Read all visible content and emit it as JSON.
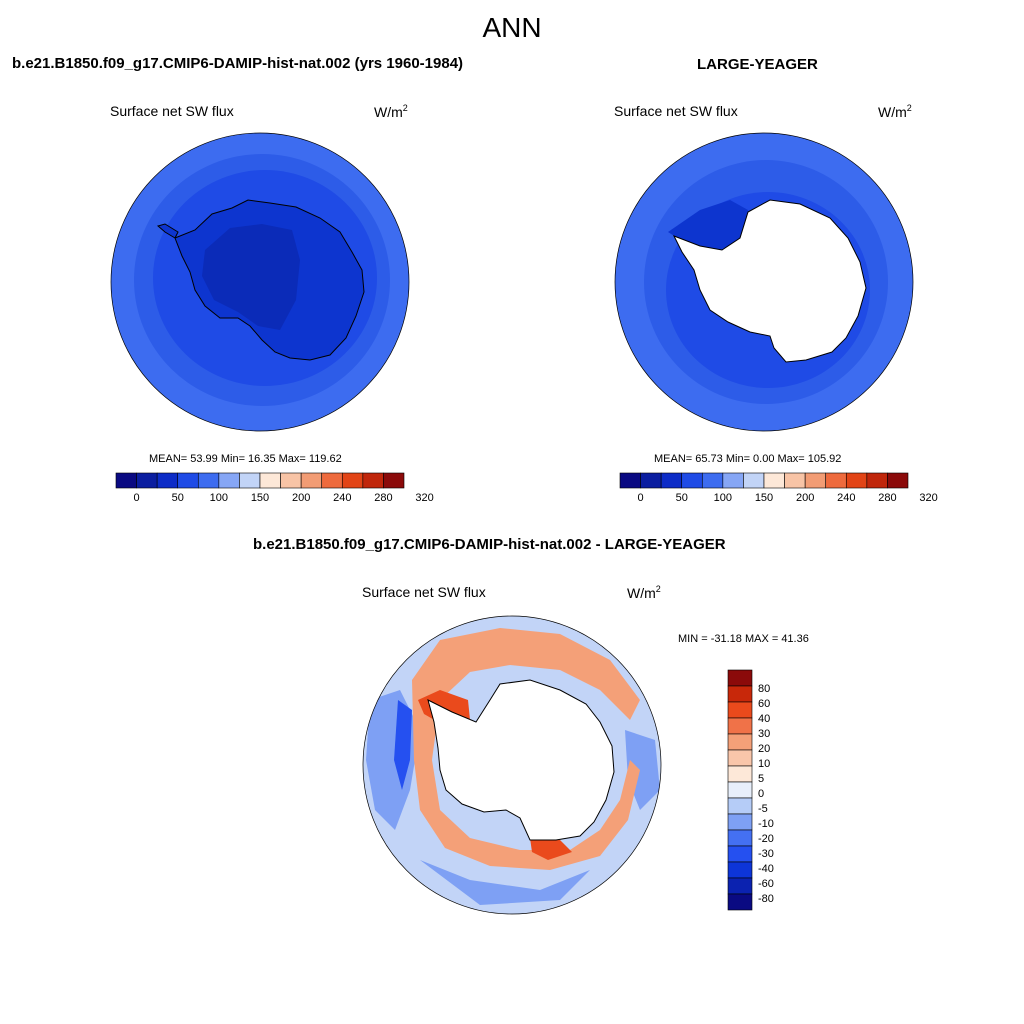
{
  "title": "ANN",
  "panels": [
    {
      "case_title": "b.e21.B1850.f09_g17.CMIP6-DAMIP-hist-nat.002 (yrs 1960-1984)",
      "variable": "Surface net SW flux",
      "units": "W/m",
      "units_sup": "2",
      "stats": "MEAN=  53.99  Min=  16.35  Max= 119.62"
    },
    {
      "case_title": "LARGE-YEAGER",
      "variable": "Surface net SW flux",
      "units": "W/m",
      "units_sup": "2",
      "stats": "MEAN=  65.73  Min=   0.00  Max= 105.92"
    },
    {
      "case_title": "b.e21.B1850.f09_g17.CMIP6-DAMIP-hist-nat.002 - LARGE-YEAGER",
      "variable": "Surface net SW flux",
      "units": "W/m",
      "units_sup": "2",
      "stats": "MIN = -31.18 MAX =  41.36"
    }
  ],
  "colorbar_abs": {
    "colors": [
      "#0a0a82",
      "#0b1ea0",
      "#0d2cc7",
      "#1f4be6",
      "#3d6cf0",
      "#86a6f5",
      "#c2d4f7",
      "#fde8d8",
      "#f8c4a6",
      "#f29c74",
      "#ee6a3d",
      "#e24416",
      "#c0260b",
      "#8b0a0a"
    ],
    "ticks": [
      "0",
      "50",
      "100",
      "150",
      "200",
      "240",
      "280",
      "320"
    ]
  },
  "colorbar_diff": {
    "colors": [
      "#0a0a82",
      "#0b22b0",
      "#0d35d8",
      "#2550f0",
      "#4470f2",
      "#7ea0f4",
      "#b5ccf7",
      "#e8effb",
      "#fde8d8",
      "#f9c6aa",
      "#f4a078",
      "#f07248",
      "#ea4a1c",
      "#c8280a",
      "#8b0a0a"
    ],
    "ticks": [
      "80",
      "60",
      "40",
      "30",
      "20",
      "10",
      "5",
      "0",
      "-5",
      "-10",
      "-20",
      "-30",
      "-40",
      "-60",
      "-80"
    ]
  },
  "map_colors": {
    "ocean_outer": "#3d6cf0",
    "ocean_mid": "#2d5ce8",
    "ocean_inner": "#1f4be6",
    "antarctica_fill": "#0d35cf",
    "antarctica_deep": "#0b2bb8",
    "land_mask": "#ffffff",
    "diff_base": "#c2d4f7",
    "diff_warm": "#f4a078",
    "diff_hot": "#ea4a1c",
    "diff_cool": "#7ea0f4",
    "diff_cold": "#2550f0"
  }
}
